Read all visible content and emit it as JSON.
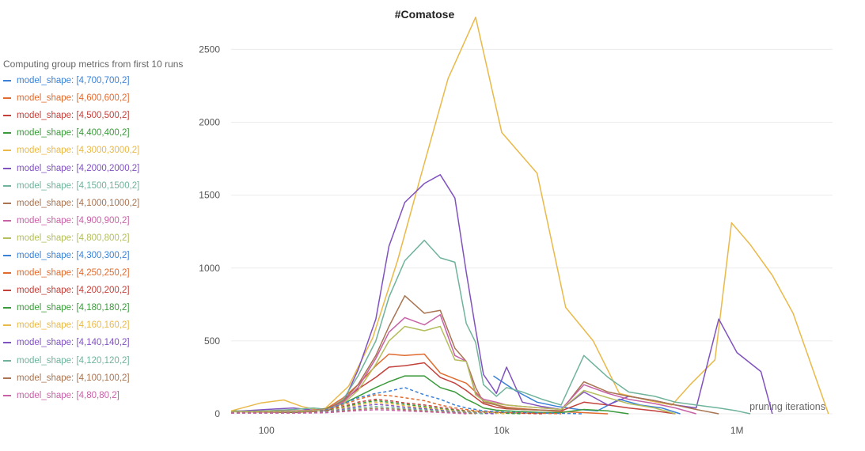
{
  "chart_data": {
    "type": "line",
    "title": "#Comatose",
    "xlabel": "pruning iterations",
    "ylabel": "",
    "x_scale": "log",
    "xlim": [
      50,
      6500000
    ],
    "ylim": [
      0,
      2730
    ],
    "x_ticks": [
      {
        "value": 100,
        "label": "100"
      },
      {
        "value": 10000,
        "label": "10k"
      },
      {
        "value": 1000000,
        "label": "1M"
      }
    ],
    "y_ticks": [
      {
        "value": 0,
        "label": "0"
      },
      {
        "value": 500,
        "label": "500"
      },
      {
        "value": 1000,
        "label": "1000"
      },
      {
        "value": 1500,
        "label": "1500"
      },
      {
        "value": 2000,
        "label": "2000"
      },
      {
        "value": 2500,
        "label": "2500"
      }
    ],
    "grid": true,
    "legend_header": "Computing group metrics from first 10 runs",
    "legend_position": "left",
    "series": [
      {
        "name": "model_shape: [4,700,700,2]",
        "color": "#3b82d6",
        "dash": false,
        "x": [
          8500,
          13000,
          20000,
          30000,
          45000,
          65000,
          100000,
          150000,
          230000,
          330000
        ],
        "y": [
          260,
          160,
          80,
          50,
          30,
          20,
          100,
          60,
          40,
          0
        ]
      },
      {
        "name": "model_shape: [4,600,600,2]",
        "color": "#e06b2f",
        "dash": false,
        "x": [
          50,
          100,
          170,
          250,
          330,
          450,
          600,
          850,
          1100,
          1500,
          2200,
          3000,
          4000,
          5000,
          6000,
          7000,
          9000,
          11000,
          15000,
          22000,
          32000,
          50000,
          80000
        ],
        "y": [
          15,
          12,
          10,
          18,
          40,
          110,
          200,
          330,
          410,
          400,
          410,
          280,
          240,
          210,
          150,
          90,
          60,
          45,
          35,
          25,
          15,
          8,
          0
        ]
      },
      {
        "name": "model_shape: [4,500,500,2]",
        "color": "#c2413b",
        "dash": false,
        "x": [
          50,
          100,
          170,
          250,
          330,
          450,
          600,
          850,
          1100,
          1500,
          2200,
          3000,
          4000,
          5000,
          6000,
          7000,
          9000,
          11000,
          15000,
          22000,
          32000,
          50000,
          80000,
          120000,
          200000,
          300000
        ],
        "y": [
          15,
          12,
          10,
          16,
          35,
          90,
          170,
          250,
          320,
          330,
          350,
          250,
          210,
          160,
          110,
          70,
          45,
          35,
          30,
          25,
          20,
          80,
          60,
          40,
          20,
          0
        ]
      },
      {
        "name": "model_shape: [4,400,400,2]",
        "color": "#3a9a3a",
        "dash": false,
        "x": [
          50,
          100,
          170,
          250,
          330,
          450,
          600,
          850,
          1100,
          1500,
          2200,
          3000,
          4000,
          5000,
          6000,
          7000,
          9000,
          11000,
          15000,
          22000,
          32000,
          50000,
          80000,
          120000
        ],
        "y": [
          20,
          15,
          12,
          20,
          40,
          70,
          120,
          180,
          220,
          260,
          260,
          180,
          150,
          100,
          70,
          40,
          25,
          20,
          15,
          10,
          8,
          30,
          20,
          0
        ]
      },
      {
        "name": "model_shape: [4,3000,3000,2]",
        "color": "#e9b949",
        "dash": false,
        "x": [
          50,
          90,
          140,
          200,
          300,
          500,
          800,
          1300,
          2000,
          3500,
          6000,
          10000,
          20000,
          35000,
          60000,
          100000,
          180000,
          280000,
          400000,
          650000,
          900000,
          1300000,
          2000000,
          3000000,
          6000000
        ],
        "y": [
          20,
          75,
          95,
          50,
          20,
          190,
          520,
          1050,
          1600,
          2300,
          2720,
          1930,
          1650,
          730,
          500,
          140,
          90,
          60,
          200,
          370,
          1310,
          1160,
          950,
          690,
          0
        ]
      },
      {
        "name": "model_shape: [4,2000,2000,2]",
        "color": "#8052c0",
        "dash": false,
        "x": [
          50,
          100,
          170,
          250,
          330,
          450,
          600,
          850,
          1100,
          1500,
          2200,
          3000,
          4000,
          5000,
          6000,
          7000,
          9000,
          11000,
          15000,
          22000,
          32000,
          50000,
          80000,
          120000,
          200000,
          300000,
          450000,
          700000,
          1000000,
          1600000,
          2000000
        ],
        "y": [
          15,
          30,
          40,
          25,
          20,
          80,
          300,
          650,
          1150,
          1450,
          1580,
          1640,
          1480,
          970,
          580,
          270,
          140,
          320,
          80,
          50,
          30,
          150,
          60,
          120,
          90,
          60,
          40,
          650,
          420,
          290,
          0
        ]
      },
      {
        "name": "model_shape: [4,1500,1500,2]",
        "color": "#6fb39a",
        "dash": false,
        "x": [
          50,
          100,
          170,
          250,
          330,
          450,
          600,
          850,
          1100,
          1500,
          2200,
          3000,
          4000,
          5000,
          6000,
          7000,
          9000,
          11000,
          15000,
          22000,
          32000,
          50000,
          80000,
          120000,
          200000,
          300000,
          450000,
          700000,
          1000000,
          1300000
        ],
        "y": [
          15,
          20,
          30,
          40,
          30,
          100,
          260,
          500,
          800,
          1050,
          1190,
          1070,
          1040,
          620,
          490,
          200,
          120,
          180,
          150,
          100,
          60,
          400,
          250,
          150,
          120,
          80,
          60,
          40,
          20,
          0
        ]
      },
      {
        "name": "model_shape: [4,1000,1000,2]",
        "color": "#a87452",
        "dash": false,
        "x": [
          50,
          100,
          170,
          250,
          330,
          450,
          600,
          850,
          1100,
          1500,
          2200,
          3000,
          4000,
          5000,
          6000,
          7000,
          9000,
          11000,
          15000,
          22000,
          32000,
          50000,
          80000,
          120000,
          200000,
          300000,
          450000,
          700000
        ],
        "y": [
          15,
          18,
          20,
          25,
          35,
          90,
          200,
          400,
          600,
          810,
          690,
          710,
          450,
          360,
          180,
          80,
          60,
          40,
          30,
          25,
          20,
          220,
          150,
          120,
          90,
          60,
          30,
          0
        ]
      },
      {
        "name": "model_shape: [4,900,900,2]",
        "color": "#c762a6",
        "dash": false,
        "x": [
          50,
          100,
          170,
          250,
          330,
          450,
          600,
          850,
          1100,
          1500,
          2200,
          3000,
          4000,
          5000,
          6000,
          7000,
          9000,
          11000,
          15000,
          22000,
          32000,
          50000,
          80000,
          120000,
          200000,
          300000,
          450000
        ],
        "y": [
          15,
          15,
          18,
          22,
          30,
          80,
          180,
          380,
          560,
          660,
          610,
          680,
          400,
          360,
          140,
          100,
          80,
          60,
          50,
          40,
          30,
          200,
          140,
          100,
          70,
          40,
          0
        ]
      },
      {
        "name": "model_shape: [4,800,800,2]",
        "color": "#b4be5c",
        "dash": false,
        "x": [
          50,
          100,
          170,
          250,
          330,
          450,
          600,
          850,
          1100,
          1500,
          2200,
          3000,
          4000,
          5000,
          6000,
          7000,
          9000,
          11000,
          15000,
          22000,
          32000,
          50000,
          80000,
          120000,
          200000,
          300000
        ],
        "y": [
          15,
          15,
          16,
          20,
          30,
          70,
          160,
          340,
          500,
          600,
          570,
          600,
          370,
          360,
          130,
          90,
          70,
          60,
          50,
          40,
          30,
          160,
          110,
          70,
          40,
          0
        ]
      },
      {
        "name": "model_shape: [4,300,300,2]",
        "color": "#3b82d6",
        "dash": true,
        "x": [
          50,
          100,
          170,
          250,
          330,
          450,
          600,
          850,
          1100,
          1500,
          2200,
          3000,
          4000,
          5000,
          6000,
          7000,
          9000,
          11000,
          15000,
          22000,
          32000,
          50000
        ],
        "y": [
          10,
          10,
          10,
          15,
          30,
          70,
          110,
          140,
          155,
          180,
          130,
          100,
          60,
          40,
          30,
          20,
          15,
          10,
          8,
          5,
          3,
          0
        ]
      },
      {
        "name": "model_shape: [4,250,250,2]",
        "color": "#e06b2f",
        "dash": true,
        "x": [
          50,
          100,
          170,
          250,
          330,
          450,
          600,
          850,
          1100,
          1500,
          2200,
          3000,
          4000,
          5000,
          6000,
          7000,
          9000,
          11000,
          15000,
          22000,
          32000
        ],
        "y": [
          10,
          10,
          10,
          14,
          25,
          60,
          100,
          130,
          125,
          110,
          90,
          60,
          40,
          30,
          20,
          15,
          10,
          8,
          5,
          3,
          0
        ]
      },
      {
        "name": "model_shape: [4,200,200,2]",
        "color": "#c2413b",
        "dash": true,
        "x": [
          50,
          100,
          170,
          250,
          330,
          450,
          600,
          850,
          1100,
          1500,
          2200,
          3000,
          4000,
          5000,
          6000,
          7000,
          9000,
          11000,
          15000,
          22000
        ],
        "y": [
          10,
          10,
          10,
          12,
          22,
          50,
          80,
          100,
          90,
          75,
          60,
          45,
          30,
          20,
          15,
          10,
          8,
          5,
          3,
          0
        ]
      },
      {
        "name": "model_shape: [4,180,180,2]",
        "color": "#3a9a3a",
        "dash": true,
        "x": [
          50,
          100,
          170,
          250,
          330,
          450,
          600,
          850,
          1100,
          1500,
          2200,
          3000,
          4000,
          5000,
          6000,
          7000,
          9000,
          11000,
          15000
        ],
        "y": [
          8,
          8,
          9,
          10,
          20,
          45,
          70,
          90,
          80,
          65,
          50,
          35,
          25,
          18,
          12,
          8,
          5,
          3,
          0
        ]
      },
      {
        "name": "model_shape: [4,160,160,2]",
        "color": "#e9b949",
        "dash": true,
        "x": [
          50,
          100,
          170,
          250,
          330,
          450,
          600,
          850,
          1100,
          1500,
          2200,
          3000,
          4000,
          5000,
          6000,
          7000,
          9000,
          11000
        ],
        "y": [
          8,
          8,
          8,
          10,
          18,
          40,
          60,
          80,
          70,
          55,
          42,
          30,
          20,
          14,
          10,
          6,
          3,
          0
        ]
      },
      {
        "name": "model_shape: [4,140,140,2]",
        "color": "#8052c0",
        "dash": true,
        "x": [
          50,
          100,
          170,
          250,
          330,
          450,
          600,
          850,
          1100,
          1500,
          2200,
          3000,
          4000,
          5000,
          6000,
          7000,
          9000
        ],
        "y": [
          8,
          8,
          8,
          9,
          15,
          32,
          50,
          65,
          58,
          45,
          35,
          25,
          16,
          10,
          6,
          3,
          0
        ]
      },
      {
        "name": "model_shape: [4,120,120,2]",
        "color": "#6fb39a",
        "dash": true,
        "x": [
          50,
          100,
          170,
          250,
          330,
          450,
          600,
          850,
          1100,
          1500,
          2200,
          3000,
          4000,
          5000,
          6000,
          7000
        ],
        "y": [
          6,
          6,
          7,
          8,
          12,
          25,
          40,
          50,
          45,
          35,
          28,
          20,
          12,
          7,
          3,
          0
        ]
      },
      {
        "name": "model_shape: [4,100,100,2]",
        "color": "#a87452",
        "dash": true,
        "x": [
          50,
          100,
          170,
          250,
          330,
          450,
          600,
          850,
          1100,
          1500,
          2200,
          3000,
          4000,
          5000,
          6000
        ],
        "y": [
          6,
          6,
          6,
          7,
          10,
          20,
          30,
          38,
          34,
          28,
          20,
          14,
          8,
          4,
          0
        ]
      },
      {
        "name": "model_shape: [4,80,80,2]",
        "color": "#c762a6",
        "dash": true,
        "x": [
          50,
          100,
          170,
          250,
          330,
          450,
          600,
          850,
          1100,
          1500,
          2200,
          3000,
          4000,
          5000
        ],
        "y": [
          5,
          5,
          5,
          6,
          8,
          15,
          22,
          28,
          25,
          20,
          14,
          9,
          5,
          0
        ]
      }
    ]
  }
}
